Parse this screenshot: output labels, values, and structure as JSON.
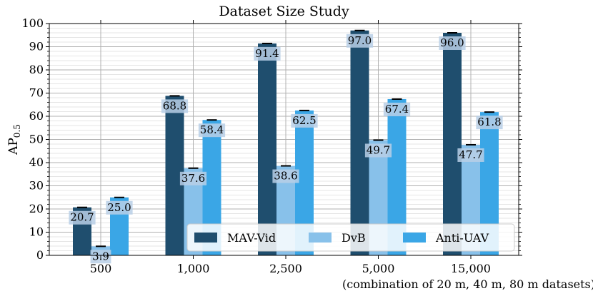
{
  "chart_data": {
    "type": "bar",
    "title": "Dataset Size Study",
    "ylabel_main": "AP",
    "ylabel_sub": "0.5",
    "xlabel": "",
    "x_note": "(combination of 20 m, 40 m, 80 m datasets)",
    "categories": [
      "500",
      "1,000",
      "2,500",
      "5,000",
      "15,000"
    ],
    "ylim": [
      0,
      100
    ],
    "yticks": [
      0,
      10,
      20,
      30,
      40,
      50,
      60,
      70,
      80,
      90,
      100
    ],
    "grid": true,
    "legend_position": "bottom-right",
    "series": [
      {
        "name": "MAV-Vid",
        "color": "#1f4e6e",
        "values": [
          20.7,
          68.8,
          91.4,
          97.0,
          96.0
        ],
        "labels": [
          "20.7",
          "68.8",
          "91.4",
          "97.0",
          "96.0"
        ]
      },
      {
        "name": "DvB",
        "color": "#88c1ea",
        "values": [
          3.9,
          37.6,
          38.6,
          49.7,
          47.7
        ],
        "labels": [
          "3.9",
          "37.6",
          "38.6",
          "49.7",
          "47.7"
        ]
      },
      {
        "name": "Anti-UAV",
        "color": "#3aa6e6",
        "values": [
          25.0,
          58.4,
          62.5,
          67.4,
          61.8
        ],
        "labels": [
          "25.0",
          "58.4",
          "62.5",
          "67.4",
          "61.8"
        ]
      }
    ]
  }
}
